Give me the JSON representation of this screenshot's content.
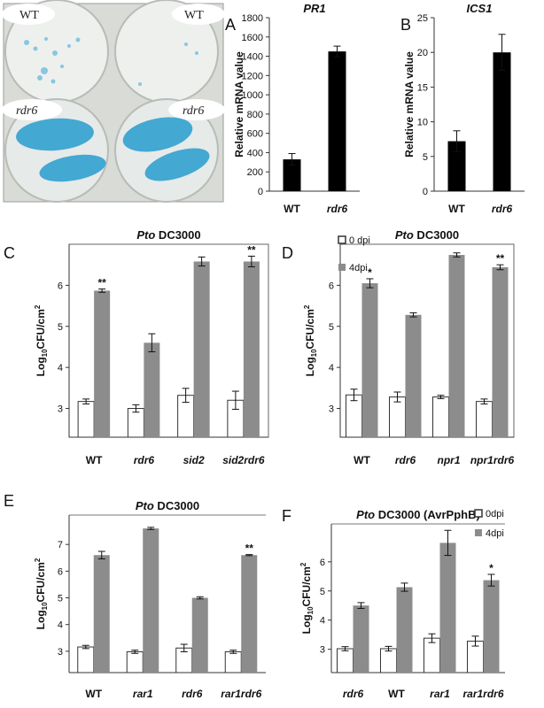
{
  "photo": {
    "labels": [
      "WT",
      "WT",
      "rdr6",
      "rdr6"
    ],
    "colors": {
      "plate": "#dde0dc",
      "well": "#eef0ee",
      "leaf": "#43a8d2",
      "stain": "#5cb6dc"
    }
  },
  "chart_data": [
    {
      "panel": "A",
      "type": "bar",
      "title": "PR1",
      "ylabel": "Relative mRNA value",
      "categories": [
        "WT",
        "rdr6"
      ],
      "series": [
        {
          "values": [
            330,
            1450
          ],
          "errors": [
            60,
            55
          ],
          "color": "#000000"
        }
      ],
      "ylim": [
        0,
        1800
      ],
      "yticks": [
        0,
        200,
        400,
        600,
        800,
        1000,
        1200,
        1400,
        1600,
        1800
      ],
      "stars": [
        "",
        ""
      ]
    },
    {
      "panel": "B",
      "type": "bar",
      "title": "ICS1",
      "ylabel": "Relative mRNA value",
      "categories": [
        "WT",
        "rdr6"
      ],
      "series": [
        {
          "values": [
            7.2,
            20
          ],
          "errors": [
            1.5,
            2.6
          ],
          "color": "#000000"
        }
      ],
      "ylim": [
        0,
        25
      ],
      "yticks": [
        0,
        5,
        10,
        15,
        20,
        25
      ],
      "stars": [
        "",
        ""
      ]
    },
    {
      "panel": "C",
      "type": "bar",
      "title": "Pto DC3000",
      "ylabel": "Log10CFU/cm2",
      "categories": [
        "WT",
        "rdr6",
        "sid2",
        "sid2rdr6"
      ],
      "series": [
        {
          "name": "0 dpi",
          "values": [
            3.17,
            3.0,
            3.32,
            3.2
          ],
          "errors": [
            0.06,
            0.09,
            0.17,
            0.22
          ],
          "color": "#ffffff"
        },
        {
          "name": "4dpi",
          "values": [
            5.87,
            4.6,
            6.58,
            6.58
          ],
          "errors": [
            0.04,
            0.22,
            0.11,
            0.13
          ],
          "color": "#8c8c8c"
        }
      ],
      "ylim": [
        2.3,
        7.0
      ],
      "yticks": [
        3,
        4,
        5,
        6
      ],
      "stars": [
        "**",
        "",
        "",
        "**"
      ]
    },
    {
      "panel": "D",
      "type": "bar",
      "title": "Pto DC3000",
      "ylabel": "Log10CFU/cm2",
      "categories": [
        "WT",
        "rdr6",
        "npr1",
        "npr1rdr6"
      ],
      "series": [
        {
          "name": "0 dpi",
          "values": [
            3.33,
            3.28,
            3.28,
            3.17
          ],
          "errors": [
            0.14,
            0.12,
            0.04,
            0.06
          ],
          "color": "#ffffff"
        },
        {
          "name": "4dpi",
          "values": [
            6.05,
            5.28,
            6.74,
            6.44
          ],
          "errors": [
            0.11,
            0.05,
            0.05,
            0.06
          ],
          "color": "#8c8c8c"
        }
      ],
      "ylim": [
        2.3,
        7.0
      ],
      "yticks": [
        3,
        4,
        5,
        6
      ],
      "stars": [
        "*",
        "",
        "",
        "**"
      ],
      "legend": {
        "position": "top-right",
        "labels": [
          "0 dpi",
          "4dpi"
        ]
      }
    },
    {
      "panel": "E",
      "type": "bar",
      "title": "Pto DC3000",
      "ylabel": "Log10CFU/cm2",
      "categories": [
        "WT",
        "rar1",
        "rdr6",
        "rar1rdr6"
      ],
      "series": [
        {
          "name": "0dpi",
          "values": [
            3.16,
            2.98,
            3.12,
            2.98
          ],
          "errors": [
            0.06,
            0.06,
            0.14,
            0.06
          ],
          "color": "#ffffff"
        },
        {
          "name": "4dpi",
          "values": [
            6.6,
            7.6,
            5.0,
            6.6
          ],
          "errors": [
            0.14,
            0.04,
            0.04,
            0.02
          ],
          "color": "#8c8c8c"
        }
      ],
      "ylim": [
        2.2,
        8.1
      ],
      "yticks": [
        3,
        4,
        5,
        6,
        7
      ],
      "stars": [
        "",
        "",
        "",
        "**"
      ]
    },
    {
      "panel": "F",
      "type": "bar",
      "title": "Pto DC3000 (AvrPphB)",
      "ylabel": "Log10CFU/cm2",
      "categories": [
        "rdr6",
        "WT",
        "rar1",
        "rar1rdr6"
      ],
      "series": [
        {
          "name": "0dpi",
          "values": [
            3.02,
            3.02,
            3.38,
            3.28
          ],
          "errors": [
            0.07,
            0.08,
            0.15,
            0.17
          ],
          "color": "#ffffff"
        },
        {
          "name": "4dpi",
          "values": [
            4.5,
            5.13,
            6.65,
            5.37
          ],
          "errors": [
            0.1,
            0.14,
            0.43,
            0.2
          ],
          "color": "#8c8c8c"
        }
      ],
      "ylim": [
        2.2,
        7.3
      ],
      "yticks": [
        3,
        4,
        5,
        6
      ],
      "stars": [
        "",
        "",
        "",
        "*"
      ],
      "legend": {
        "position": "top-right",
        "labels": [
          "0dpi",
          "4dpi"
        ]
      }
    }
  ]
}
